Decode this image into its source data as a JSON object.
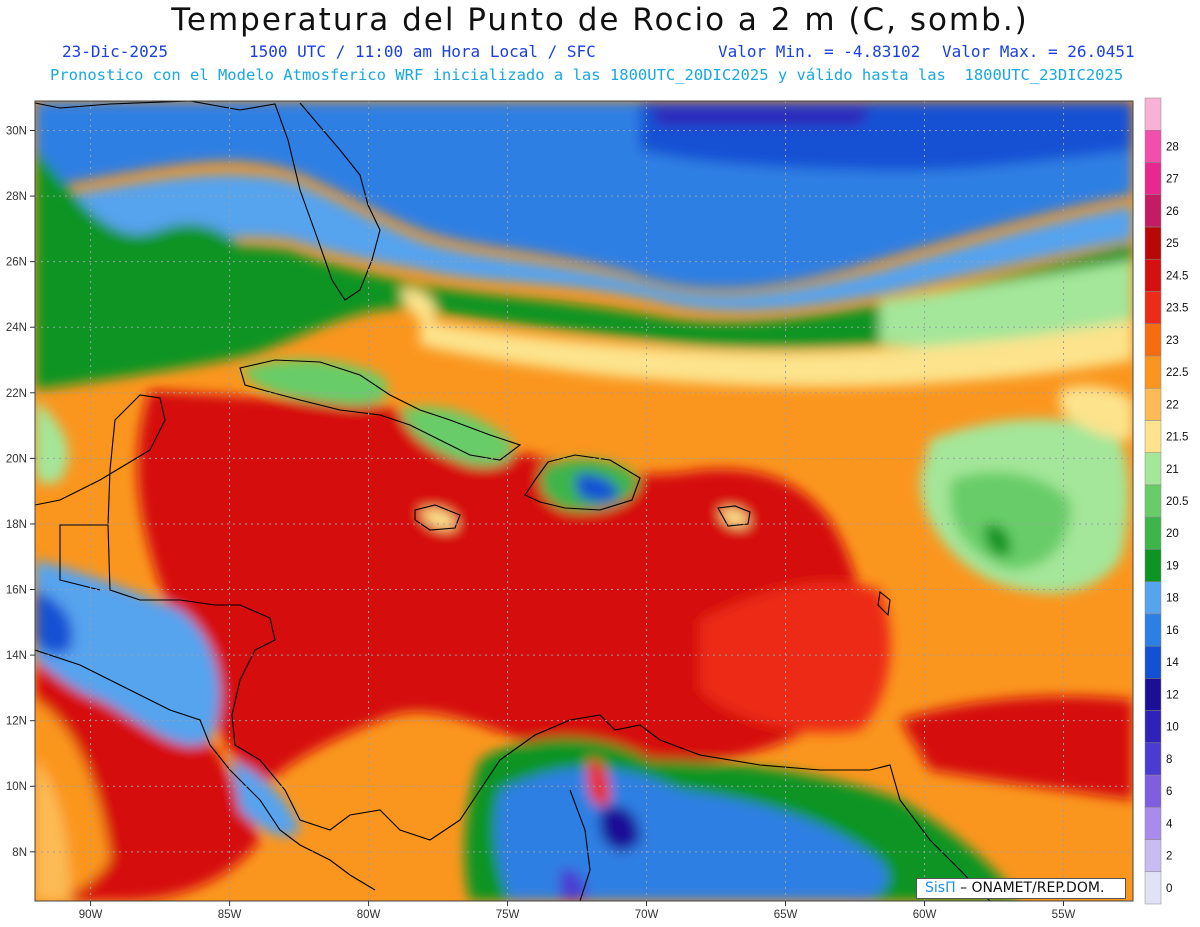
{
  "title": "Temperatura del Punto de Rocio a 2 m (C, somb.)",
  "date": "23-Dic-2025",
  "time_info": "1500 UTC / 11:00 am Hora Local / SFC",
  "min_label": "Valor Min. = -4.83102",
  "max_label": "Valor Max. = 26.0451",
  "model_info": "Pronostico con el Modelo Atmosferico WRF inicializado a las 1800UTC_20DIC2025 y válido hasta las  1800UTC_23DIC2025",
  "credit": {
    "brand": "SisΠ",
    "text": "– ONAMET/REP.DOM."
  },
  "map": {
    "lon_min": -92.0,
    "lon_max": -52.5,
    "lat_min": 6.5,
    "lat_max": 30.9,
    "lat_labels": [
      {
        "v": 30,
        "t": "30N"
      },
      {
        "v": 28,
        "t": "28N"
      },
      {
        "v": 26,
        "t": "26N"
      },
      {
        "v": 24,
        "t": "24N"
      },
      {
        "v": 22,
        "t": "22N"
      },
      {
        "v": 20,
        "t": "20N"
      },
      {
        "v": 18,
        "t": "18N"
      },
      {
        "v": 16,
        "t": "16N"
      },
      {
        "v": 14,
        "t": "14N"
      },
      {
        "v": 12,
        "t": "12N"
      },
      {
        "v": 10,
        "t": "10N"
      },
      {
        "v": 8,
        "t": "8N"
      }
    ],
    "lon_labels": [
      {
        "v": -90,
        "t": "90W"
      },
      {
        "v": -85,
        "t": "85W"
      },
      {
        "v": -80,
        "t": "80W"
      },
      {
        "v": -75,
        "t": "75W"
      },
      {
        "v": -70,
        "t": "70W"
      },
      {
        "v": -65,
        "t": "65W"
      },
      {
        "v": -60,
        "t": "60W"
      },
      {
        "v": -55,
        "t": "55W"
      }
    ]
  },
  "legend": {
    "items": [
      {
        "label": "0",
        "color": "#e2e2f7"
      },
      {
        "label": "2",
        "color": "#c8bdf2"
      },
      {
        "label": "4",
        "color": "#a98bee"
      },
      {
        "label": "6",
        "color": "#7f5fe0"
      },
      {
        "label": "8",
        "color": "#4a3cd1"
      },
      {
        "label": "10",
        "color": "#2e22b8"
      },
      {
        "label": "12",
        "color": "#1b0f96"
      },
      {
        "label": "14",
        "color": "#1251d4"
      },
      {
        "label": "16",
        "color": "#2e7fe3"
      },
      {
        "label": "18",
        "color": "#56a3ee"
      },
      {
        "label": "19",
        "color": "#0d9422"
      },
      {
        "label": "20",
        "color": "#3db54a"
      },
      {
        "label": "20.5",
        "color": "#68cd68"
      },
      {
        "label": "21",
        "color": "#a4e69a"
      },
      {
        "label": "21.5",
        "color": "#fce38c"
      },
      {
        "label": "22",
        "color": "#fcbb55"
      },
      {
        "label": "22.5",
        "color": "#fa961e"
      },
      {
        "label": "23",
        "color": "#f56d0f"
      },
      {
        "label": "23.5",
        "color": "#ec2b18"
      },
      {
        "label": "24.5",
        "color": "#d51010"
      },
      {
        "label": "25",
        "color": "#b80707"
      },
      {
        "label": "26",
        "color": "#c41c62"
      },
      {
        "label": "27",
        "color": "#e8288f"
      },
      {
        "label": "28",
        "color": "#f24eac"
      },
      {
        "label": "",
        "color": "#f9b2d6"
      }
    ]
  }
}
